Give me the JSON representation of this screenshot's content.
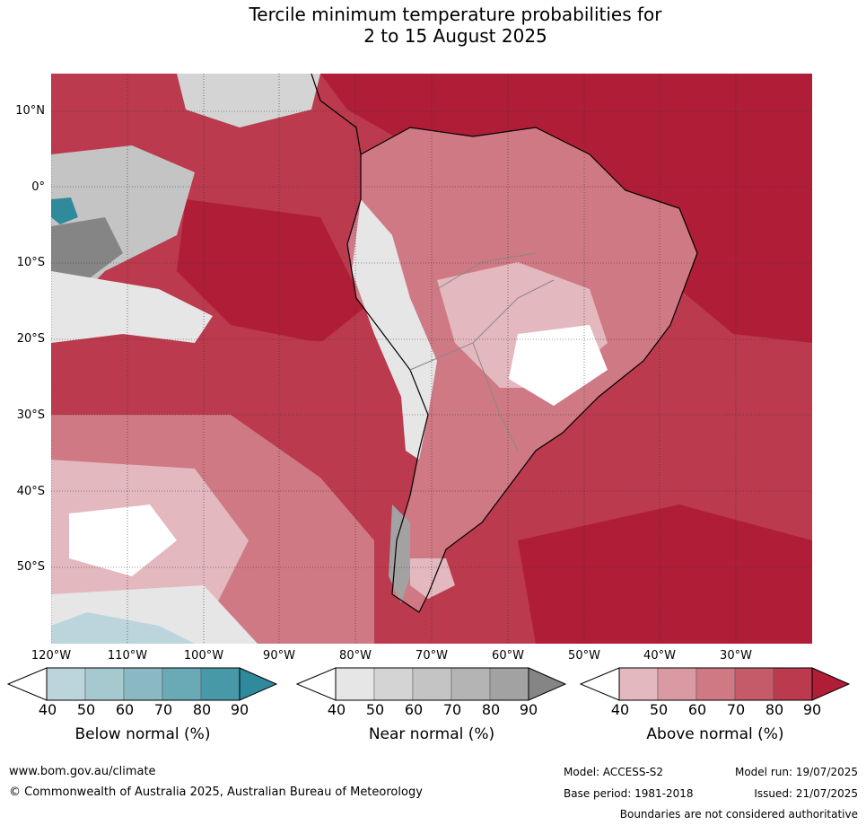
{
  "title_line1": "Tercile minimum temperature probabilities for",
  "title_line2": "2 to 15 August 2025",
  "lat_labels": [
    "10°N",
    "0°",
    "10°S",
    "20°S",
    "30°S",
    "40°S",
    "50°S"
  ],
  "lon_labels": [
    "120°W",
    "110°W",
    "100°W",
    "90°W",
    "80°W",
    "70°W",
    "60°W",
    "50°W",
    "40°W",
    "30°W"
  ],
  "colorbars": [
    {
      "title": "Below normal (%)",
      "ticks": [
        "40",
        "50",
        "60",
        "70",
        "80",
        "90"
      ],
      "colors": [
        "#bcd5dc",
        "#a6c8cf",
        "#8bb9c3",
        "#6aa9b6",
        "#4799a8",
        "#2f8a9c"
      ]
    },
    {
      "title": "Near normal (%)",
      "ticks": [
        "40",
        "50",
        "60",
        "70",
        "80",
        "90"
      ],
      "colors": [
        "#e6e6e6",
        "#d4d4d4",
        "#c4c4c4",
        "#b4b4b4",
        "#a2a2a2",
        "#858585"
      ]
    },
    {
      "title": "Above normal (%)",
      "ticks": [
        "40",
        "50",
        "60",
        "70",
        "80",
        "90"
      ],
      "colors": [
        "#e3b8be",
        "#d99aa3",
        "#cf7984",
        "#c55a68",
        "#bb3a4d",
        "#b01d37"
      ]
    }
  ],
  "footer": {
    "website": "www.bom.gov.au/climate",
    "copyright": "© Commonwealth of Australia 2025, Australian Bureau of Meteorology",
    "model": "Model: ACCESS-S2",
    "model_run": "Model run: 19/07/2025",
    "base_period": "Base period: 1981-2018",
    "issued": "Issued: 21/07/2025",
    "disclaimer": "Boundaries are not considered authoritative"
  }
}
